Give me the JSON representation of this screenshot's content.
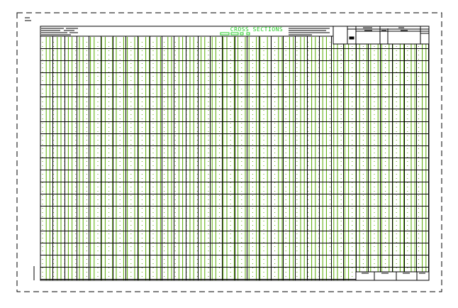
{
  "drawing": {
    "title": "CROSS SECTIONS",
    "colors": {
      "grid_minor": "#55aa00",
      "grid_major": "#000000",
      "title": "#22cc22",
      "border": "#000000"
    }
  }
}
